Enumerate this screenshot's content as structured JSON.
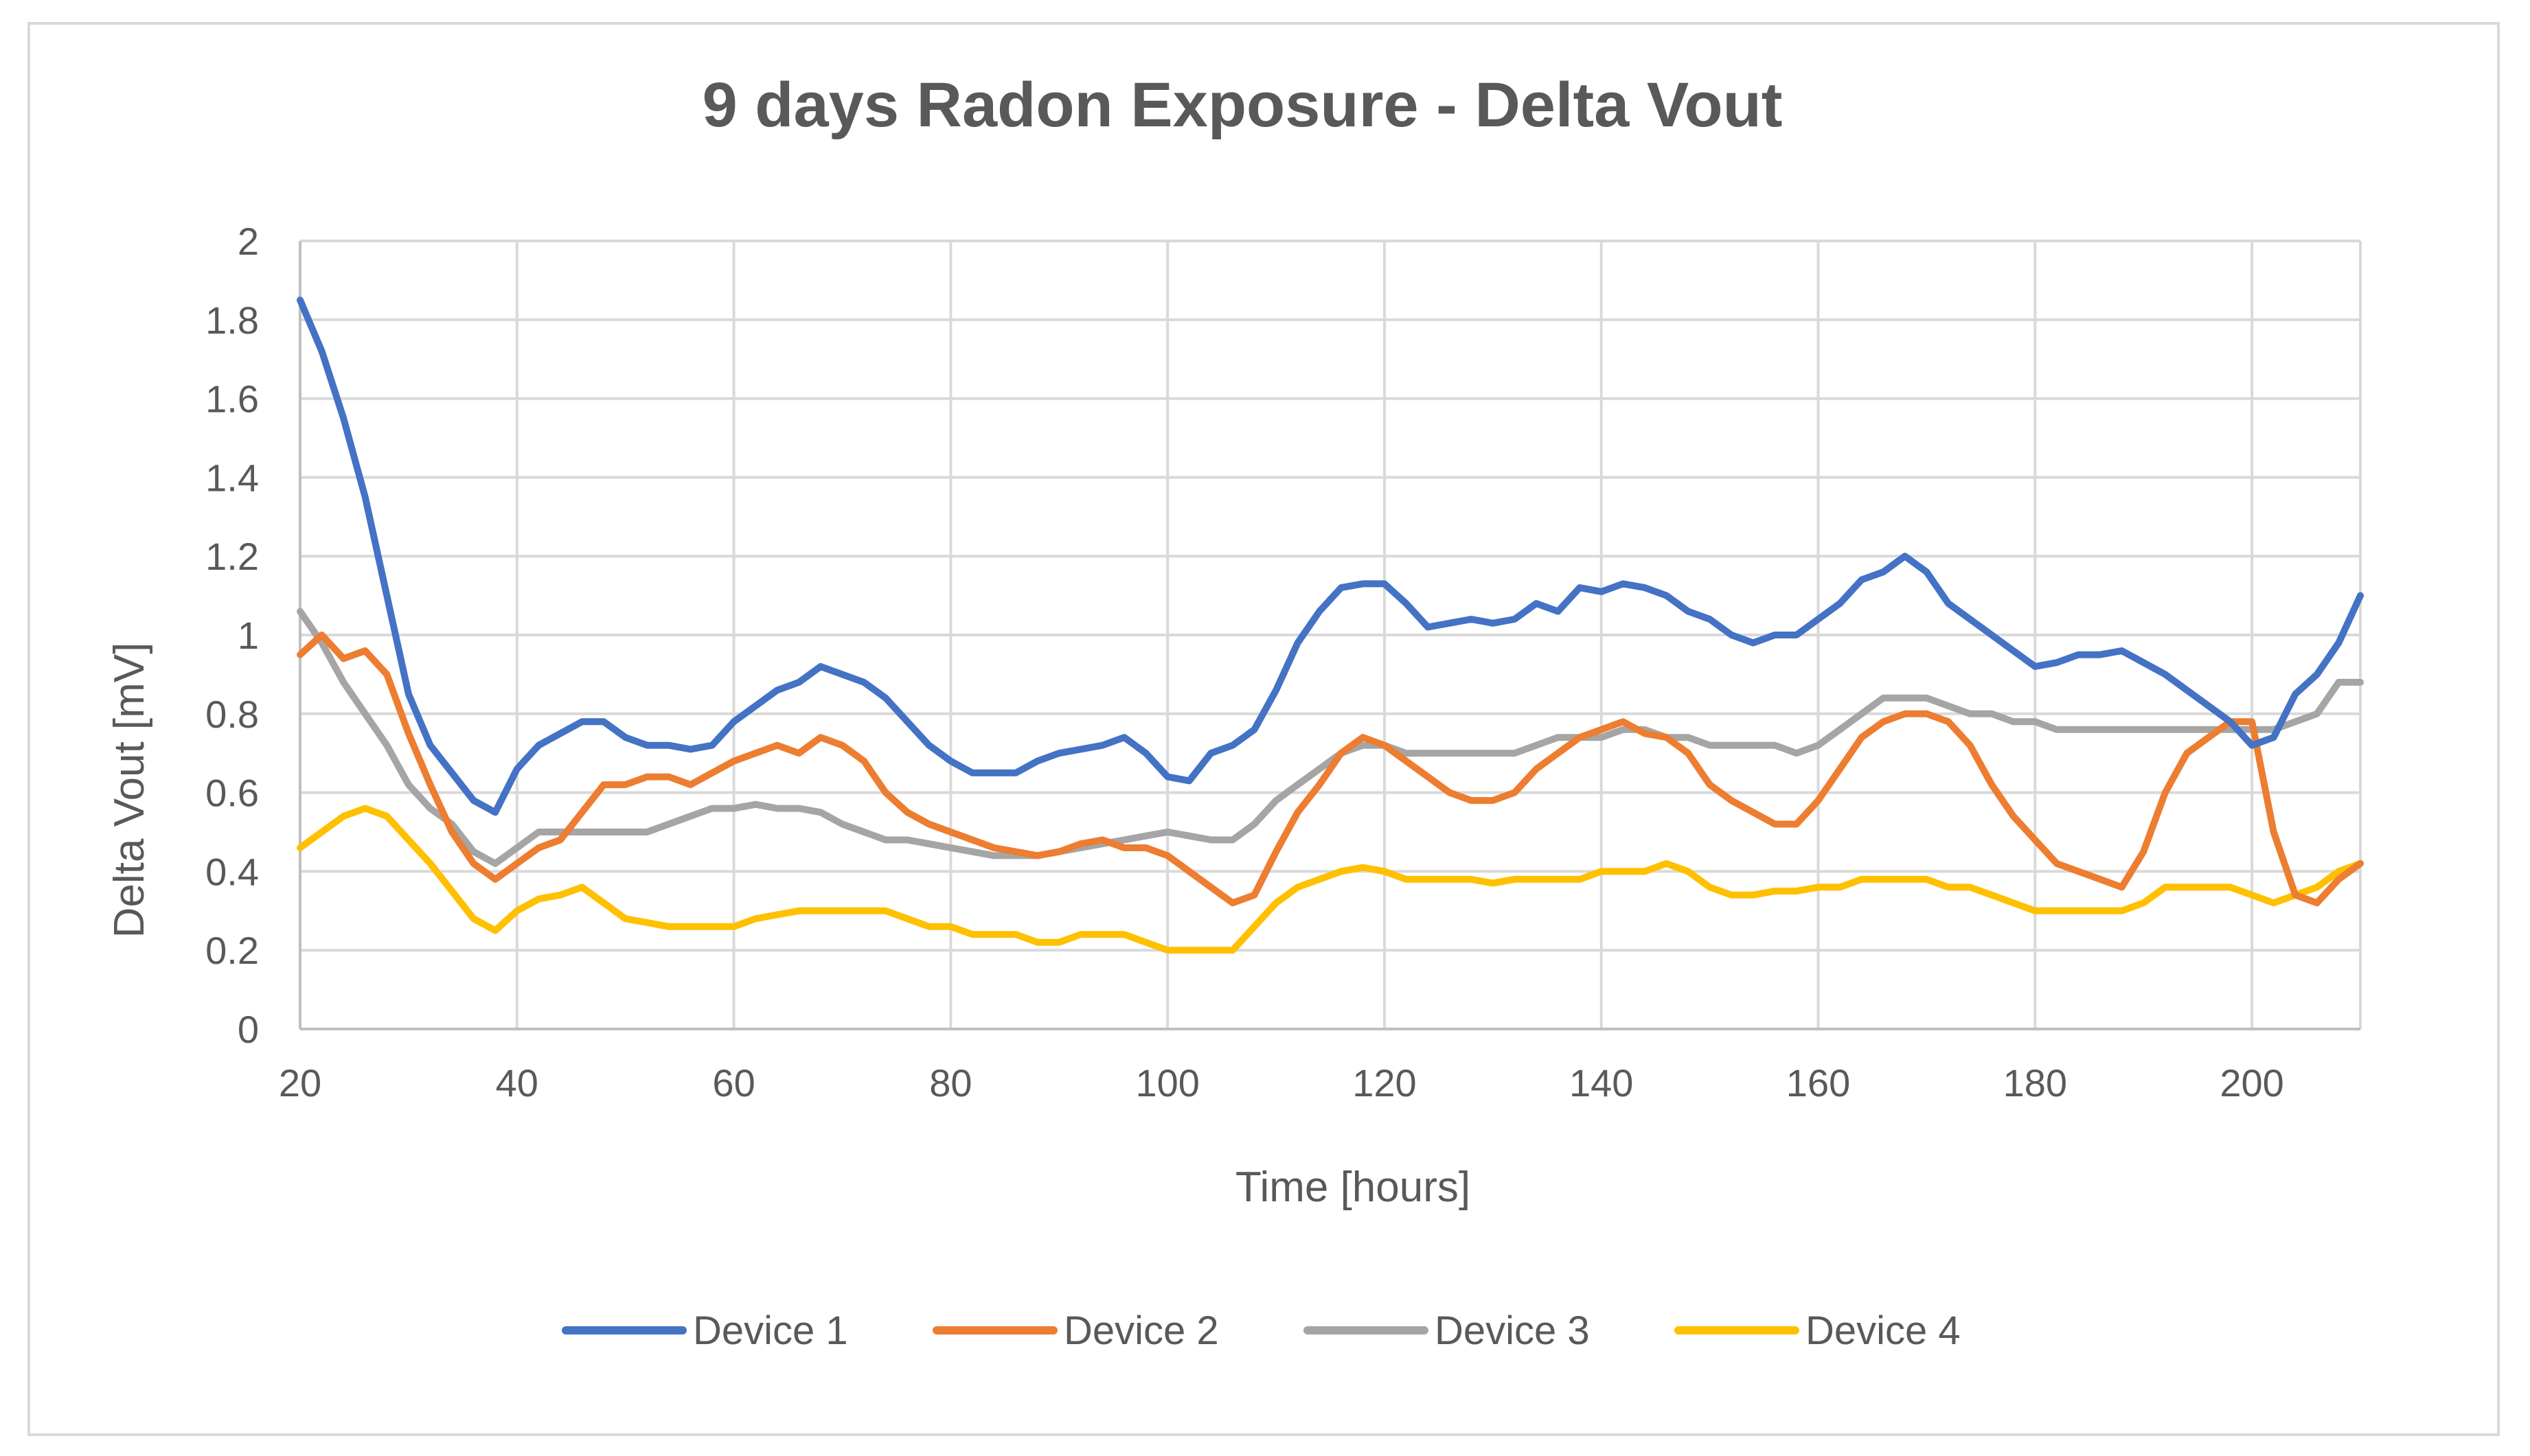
{
  "chart_data": {
    "type": "line",
    "title": "9 days Radon Exposure - Delta Vout",
    "xlabel": "Time [hours]",
    "ylabel": "Delta Vout [mV]",
    "xlim": [
      20,
      210
    ],
    "ylim": [
      0,
      2
    ],
    "x_ticks": [
      20,
      40,
      60,
      80,
      100,
      120,
      140,
      160,
      180,
      200
    ],
    "y_ticks": [
      0,
      0.2,
      0.4,
      0.6,
      0.8,
      1,
      1.2,
      1.4,
      1.6,
      1.8,
      2
    ],
    "y_tick_labels": [
      "0",
      "0.2",
      "0.4",
      "0.6",
      "0.8",
      "1",
      "1.2",
      "1.4",
      "1.6",
      "1.8",
      "2"
    ],
    "x_tick_labels": [
      "20",
      "40",
      "60",
      "80",
      "100",
      "120",
      "140",
      "160",
      "180",
      "200"
    ],
    "grid": true,
    "legend_position": "bottom",
    "series": [
      {
        "name": "Device 1",
        "color": "#4472C4",
        "x": [
          20,
          22,
          24,
          26,
          28,
          30,
          32,
          34,
          36,
          38,
          40,
          42,
          44,
          46,
          48,
          50,
          52,
          54,
          56,
          58,
          60,
          62,
          64,
          66,
          68,
          70,
          72,
          74,
          76,
          78,
          80,
          82,
          84,
          86,
          88,
          90,
          92,
          94,
          96,
          98,
          100,
          102,
          104,
          106,
          108,
          110,
          112,
          114,
          116,
          118,
          120,
          122,
          124,
          126,
          128,
          130,
          132,
          134,
          136,
          138,
          140,
          142,
          144,
          146,
          148,
          150,
          152,
          154,
          156,
          158,
          160,
          162,
          164,
          166,
          168,
          170,
          172,
          174,
          176,
          178,
          180,
          182,
          184,
          186,
          188,
          190,
          192,
          194,
          196,
          198,
          200,
          202,
          204,
          206,
          208,
          210
        ],
        "values": [
          1.85,
          1.72,
          1.55,
          1.35,
          1.1,
          0.85,
          0.72,
          0.65,
          0.58,
          0.55,
          0.66,
          0.72,
          0.75,
          0.78,
          0.78,
          0.74,
          0.72,
          0.72,
          0.71,
          0.72,
          0.78,
          0.82,
          0.86,
          0.88,
          0.92,
          0.9,
          0.88,
          0.84,
          0.78,
          0.72,
          0.68,
          0.65,
          0.65,
          0.65,
          0.68,
          0.7,
          0.71,
          0.72,
          0.74,
          0.7,
          0.64,
          0.63,
          0.7,
          0.72,
          0.76,
          0.86,
          0.98,
          1.06,
          1.12,
          1.13,
          1.13,
          1.08,
          1.02,
          1.03,
          1.04,
          1.03,
          1.04,
          1.08,
          1.06,
          1.12,
          1.11,
          1.13,
          1.12,
          1.1,
          1.06,
          1.04,
          1.0,
          0.98,
          1.0,
          1.0,
          1.04,
          1.08,
          1.14,
          1.16,
          1.2,
          1.16,
          1.08,
          1.04,
          1.0,
          0.96,
          0.92,
          0.93,
          0.95,
          0.95,
          0.96,
          0.93,
          0.9,
          0.86,
          0.82,
          0.78,
          0.72,
          0.74,
          0.85,
          0.9,
          0.98,
          1.1
        ]
      },
      {
        "name": "Device 2",
        "color": "#ED7D31",
        "x": [
          20,
          22,
          24,
          26,
          28,
          30,
          32,
          34,
          36,
          38,
          40,
          42,
          44,
          46,
          48,
          50,
          52,
          54,
          56,
          58,
          60,
          62,
          64,
          66,
          68,
          70,
          72,
          74,
          76,
          78,
          80,
          82,
          84,
          86,
          88,
          90,
          92,
          94,
          96,
          98,
          100,
          102,
          104,
          106,
          108,
          110,
          112,
          114,
          116,
          118,
          120,
          122,
          124,
          126,
          128,
          130,
          132,
          134,
          136,
          138,
          140,
          142,
          144,
          146,
          148,
          150,
          152,
          154,
          156,
          158,
          160,
          162,
          164,
          166,
          168,
          170,
          172,
          174,
          176,
          178,
          180,
          182,
          184,
          186,
          188,
          190,
          192,
          194,
          196,
          198,
          200,
          202,
          204,
          206,
          208,
          210
        ],
        "values": [
          0.95,
          1.0,
          0.94,
          0.96,
          0.9,
          0.75,
          0.62,
          0.5,
          0.42,
          0.38,
          0.42,
          0.46,
          0.48,
          0.55,
          0.62,
          0.62,
          0.64,
          0.64,
          0.62,
          0.65,
          0.68,
          0.7,
          0.72,
          0.7,
          0.74,
          0.72,
          0.68,
          0.6,
          0.55,
          0.52,
          0.5,
          0.48,
          0.46,
          0.45,
          0.44,
          0.45,
          0.47,
          0.48,
          0.46,
          0.46,
          0.44,
          0.4,
          0.36,
          0.32,
          0.34,
          0.45,
          0.55,
          0.62,
          0.7,
          0.74,
          0.72,
          0.68,
          0.64,
          0.6,
          0.58,
          0.58,
          0.6,
          0.66,
          0.7,
          0.74,
          0.76,
          0.78,
          0.75,
          0.74,
          0.7,
          0.62,
          0.58,
          0.55,
          0.52,
          0.52,
          0.58,
          0.66,
          0.74,
          0.78,
          0.8,
          0.8,
          0.78,
          0.72,
          0.62,
          0.54,
          0.48,
          0.42,
          0.4,
          0.38,
          0.36,
          0.45,
          0.6,
          0.7,
          0.74,
          0.78,
          0.78,
          0.5,
          0.34,
          0.32,
          0.38,
          0.42
        ]
      },
      {
        "name": "Device 3",
        "color": "#A5A5A5",
        "x": [
          20,
          22,
          24,
          26,
          28,
          30,
          32,
          34,
          36,
          38,
          40,
          42,
          44,
          46,
          48,
          50,
          52,
          54,
          56,
          58,
          60,
          62,
          64,
          66,
          68,
          70,
          72,
          74,
          76,
          78,
          80,
          82,
          84,
          86,
          88,
          90,
          92,
          94,
          96,
          98,
          100,
          102,
          104,
          106,
          108,
          110,
          112,
          114,
          116,
          118,
          120,
          122,
          124,
          126,
          128,
          130,
          132,
          134,
          136,
          138,
          140,
          142,
          144,
          146,
          148,
          150,
          152,
          154,
          156,
          158,
          160,
          162,
          164,
          166,
          168,
          170,
          172,
          174,
          176,
          178,
          180,
          182,
          184,
          186,
          188,
          190,
          192,
          194,
          196,
          198,
          200,
          202,
          204,
          206,
          208,
          210
        ],
        "values": [
          1.06,
          0.98,
          0.88,
          0.8,
          0.72,
          0.62,
          0.56,
          0.52,
          0.45,
          0.42,
          0.46,
          0.5,
          0.5,
          0.5,
          0.5,
          0.5,
          0.5,
          0.52,
          0.54,
          0.56,
          0.56,
          0.57,
          0.56,
          0.56,
          0.55,
          0.52,
          0.5,
          0.48,
          0.48,
          0.47,
          0.46,
          0.45,
          0.44,
          0.44,
          0.44,
          0.45,
          0.46,
          0.47,
          0.48,
          0.49,
          0.5,
          0.49,
          0.48,
          0.48,
          0.52,
          0.58,
          0.62,
          0.66,
          0.7,
          0.72,
          0.72,
          0.7,
          0.7,
          0.7,
          0.7,
          0.7,
          0.7,
          0.72,
          0.74,
          0.74,
          0.74,
          0.76,
          0.76,
          0.74,
          0.74,
          0.72,
          0.72,
          0.72,
          0.72,
          0.7,
          0.72,
          0.76,
          0.8,
          0.84,
          0.84,
          0.84,
          0.82,
          0.8,
          0.8,
          0.78,
          0.78,
          0.76,
          0.76,
          0.76,
          0.76,
          0.76,
          0.76,
          0.76,
          0.76,
          0.76,
          0.76,
          0.76,
          0.78,
          0.8,
          0.88,
          0.88
        ]
      },
      {
        "name": "Device 4",
        "color": "#FFC000",
        "x": [
          20,
          22,
          24,
          26,
          28,
          30,
          32,
          34,
          36,
          38,
          40,
          42,
          44,
          46,
          48,
          50,
          52,
          54,
          56,
          58,
          60,
          62,
          64,
          66,
          68,
          70,
          72,
          74,
          76,
          78,
          80,
          82,
          84,
          86,
          88,
          90,
          92,
          94,
          96,
          98,
          100,
          102,
          104,
          106,
          108,
          110,
          112,
          114,
          116,
          118,
          120,
          122,
          124,
          126,
          128,
          130,
          132,
          134,
          136,
          138,
          140,
          142,
          144,
          146,
          148,
          150,
          152,
          154,
          156,
          158,
          160,
          162,
          164,
          166,
          168,
          170,
          172,
          174,
          176,
          178,
          180,
          182,
          184,
          186,
          188,
          190,
          192,
          194,
          196,
          198,
          200,
          202,
          204,
          206,
          208,
          210
        ],
        "values": [
          0.46,
          0.5,
          0.54,
          0.56,
          0.54,
          0.48,
          0.42,
          0.35,
          0.28,
          0.25,
          0.3,
          0.33,
          0.34,
          0.36,
          0.32,
          0.28,
          0.27,
          0.26,
          0.26,
          0.26,
          0.26,
          0.28,
          0.29,
          0.3,
          0.3,
          0.3,
          0.3,
          0.3,
          0.28,
          0.26,
          0.26,
          0.24,
          0.24,
          0.24,
          0.22,
          0.22,
          0.24,
          0.24,
          0.24,
          0.22,
          0.2,
          0.2,
          0.2,
          0.2,
          0.26,
          0.32,
          0.36,
          0.38,
          0.4,
          0.41,
          0.4,
          0.38,
          0.38,
          0.38,
          0.38,
          0.37,
          0.38,
          0.38,
          0.38,
          0.38,
          0.4,
          0.4,
          0.4,
          0.42,
          0.4,
          0.36,
          0.34,
          0.34,
          0.35,
          0.35,
          0.36,
          0.36,
          0.38,
          0.38,
          0.38,
          0.38,
          0.36,
          0.36,
          0.34,
          0.32,
          0.3,
          0.3,
          0.3,
          0.3,
          0.3,
          0.32,
          0.36,
          0.36,
          0.36,
          0.36,
          0.34,
          0.32,
          0.34,
          0.36,
          0.4,
          0.42
        ]
      }
    ]
  }
}
